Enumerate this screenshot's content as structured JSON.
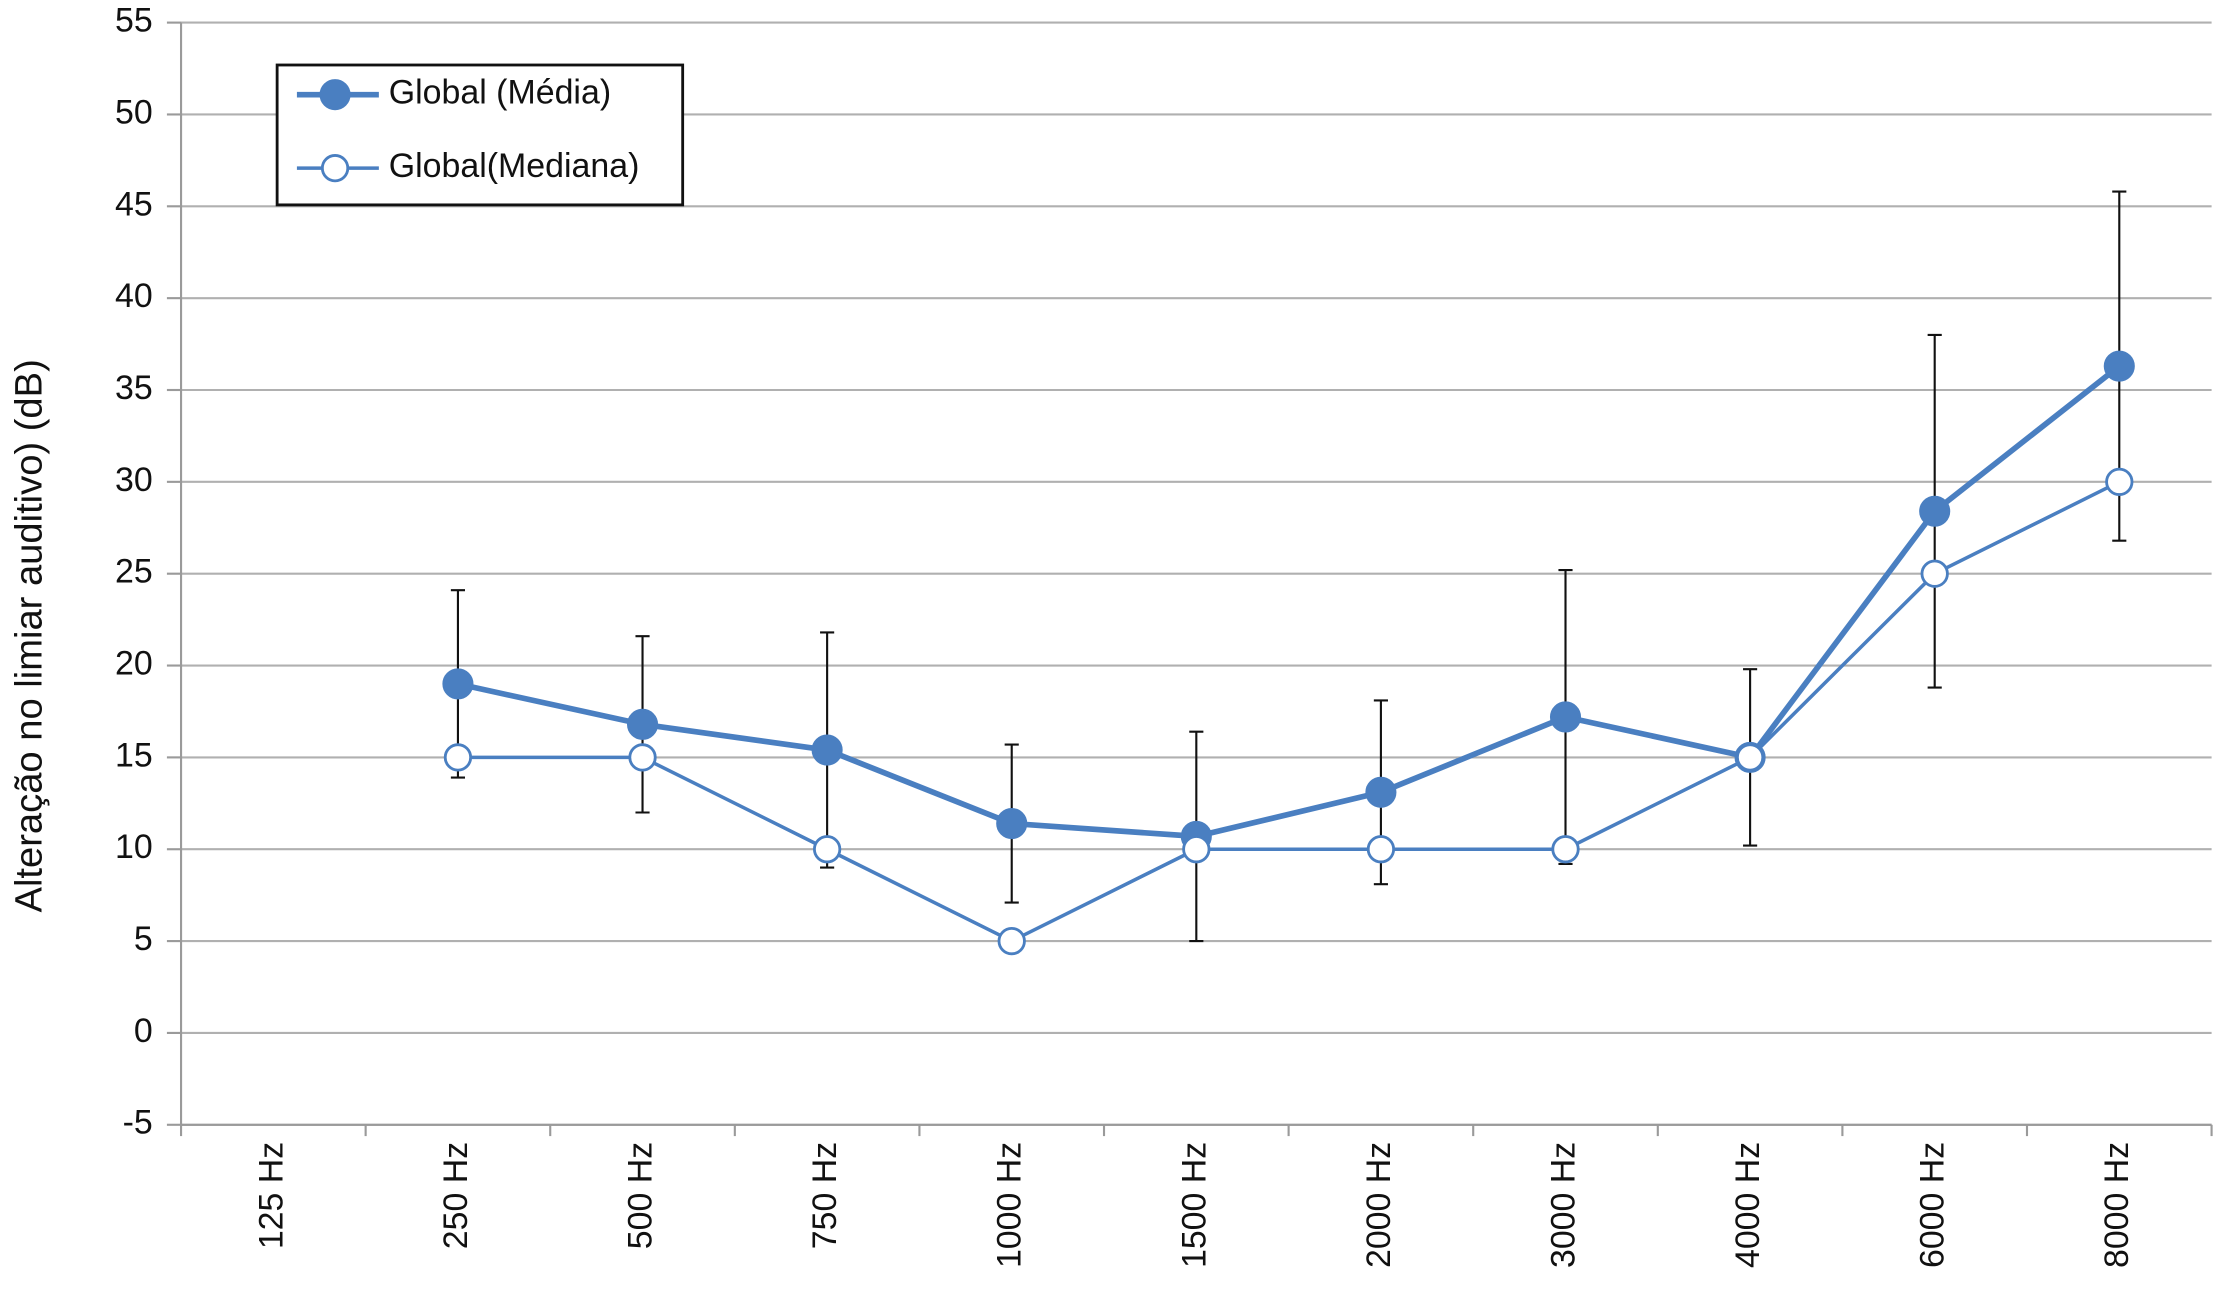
{
  "chart_data": {
    "type": "line",
    "y_label": "Alteração no limiar auditivo) (dB)",
    "categories": [
      "125 Hz",
      "250 Hz",
      "500 Hz",
      "750 Hz",
      "1000 Hz",
      "1500 Hz",
      "2000 Hz",
      "3000 Hz",
      "4000 Hz",
      "6000 Hz",
      "8000 Hz"
    ],
    "series": [
      {
        "name": "Global (Média)",
        "color": "#4a7fc1",
        "marker": "filled",
        "values": [
          null,
          19,
          16.8,
          15.4,
          11.4,
          10.7,
          13.1,
          17.2,
          15,
          28.4,
          36.3
        ],
        "errors": [
          null,
          5.1,
          4.8,
          6.4,
          4.3,
          5.7,
          5.0,
          8.0,
          4.8,
          9.6,
          9.5
        ]
      },
      {
        "name": "Global(Mediana)",
        "color": "#4a7fc1",
        "marker": "open",
        "values": [
          null,
          15,
          15,
          10,
          5,
          10,
          10,
          10,
          15,
          25,
          30
        ]
      }
    ],
    "ylim": [
      -5,
      55
    ],
    "yticks": [
      -5,
      0,
      5,
      10,
      15,
      20,
      25,
      30,
      35,
      40,
      45,
      50,
      55
    ],
    "grid": true,
    "legend": "upper left"
  }
}
